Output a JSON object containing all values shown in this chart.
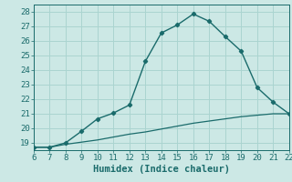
{
  "xlabel": "Humidex (Indice chaleur)",
  "ylabel": "",
  "xlim": [
    6,
    22
  ],
  "ylim": [
    18.5,
    28.5
  ],
  "xticks": [
    6,
    7,
    8,
    9,
    10,
    11,
    12,
    13,
    14,
    15,
    16,
    17,
    18,
    19,
    20,
    21,
    22
  ],
  "yticks": [
    19,
    20,
    21,
    22,
    23,
    24,
    25,
    26,
    27,
    28
  ],
  "bg_color": "#cce8e5",
  "line_color": "#1a6b6b",
  "grid_color": "#aad4d0",
  "curve1_x": [
    6,
    7,
    8,
    9,
    10,
    11,
    12,
    13,
    14,
    15,
    16,
    17,
    18,
    19,
    20,
    21,
    22
  ],
  "curve1_y": [
    18.7,
    18.7,
    19.0,
    19.8,
    20.65,
    21.05,
    21.6,
    24.6,
    26.55,
    27.1,
    27.85,
    27.35,
    26.3,
    25.3,
    22.8,
    21.8,
    21.0
  ],
  "curve2_x": [
    6,
    7,
    8,
    9,
    10,
    11,
    12,
    13,
    14,
    15,
    16,
    17,
    18,
    19,
    20,
    21,
    22
  ],
  "curve2_y": [
    18.7,
    18.7,
    18.9,
    19.05,
    19.2,
    19.4,
    19.6,
    19.75,
    19.95,
    20.15,
    20.35,
    20.5,
    20.65,
    20.8,
    20.9,
    21.0,
    21.0
  ],
  "fontsize_tick": 6.5,
  "fontsize_label": 7.5
}
